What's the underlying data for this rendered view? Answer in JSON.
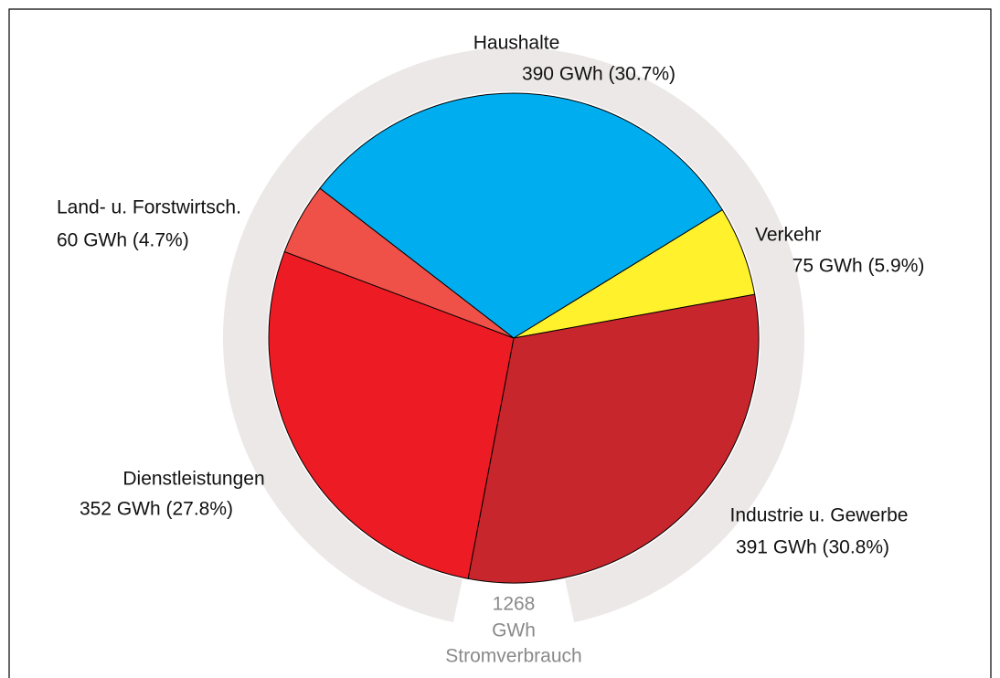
{
  "chart_data": {
    "type": "pie",
    "categories": [
      "Haushalte",
      "Verkehr",
      "Industrie u. Gewerbe",
      "Dienstleistungen",
      "Land- u. Forstwirtsch."
    ],
    "values": [
      390,
      75,
      391,
      352,
      60
    ],
    "value_labels": [
      "390 GWh (30.7%)",
      "75 GWh (5.9%)",
      "391 GWh (30.8%)",
      "352 GWh (27.8%)",
      "60 GWh (4.7%)"
    ],
    "colors": [
      "#00aeef",
      "#fff22d",
      "#c8262d",
      "#ed1c24",
      "#ef5148"
    ],
    "total": "1268",
    "total_unit": "GWh",
    "total_label": "Stromverbrauch"
  }
}
